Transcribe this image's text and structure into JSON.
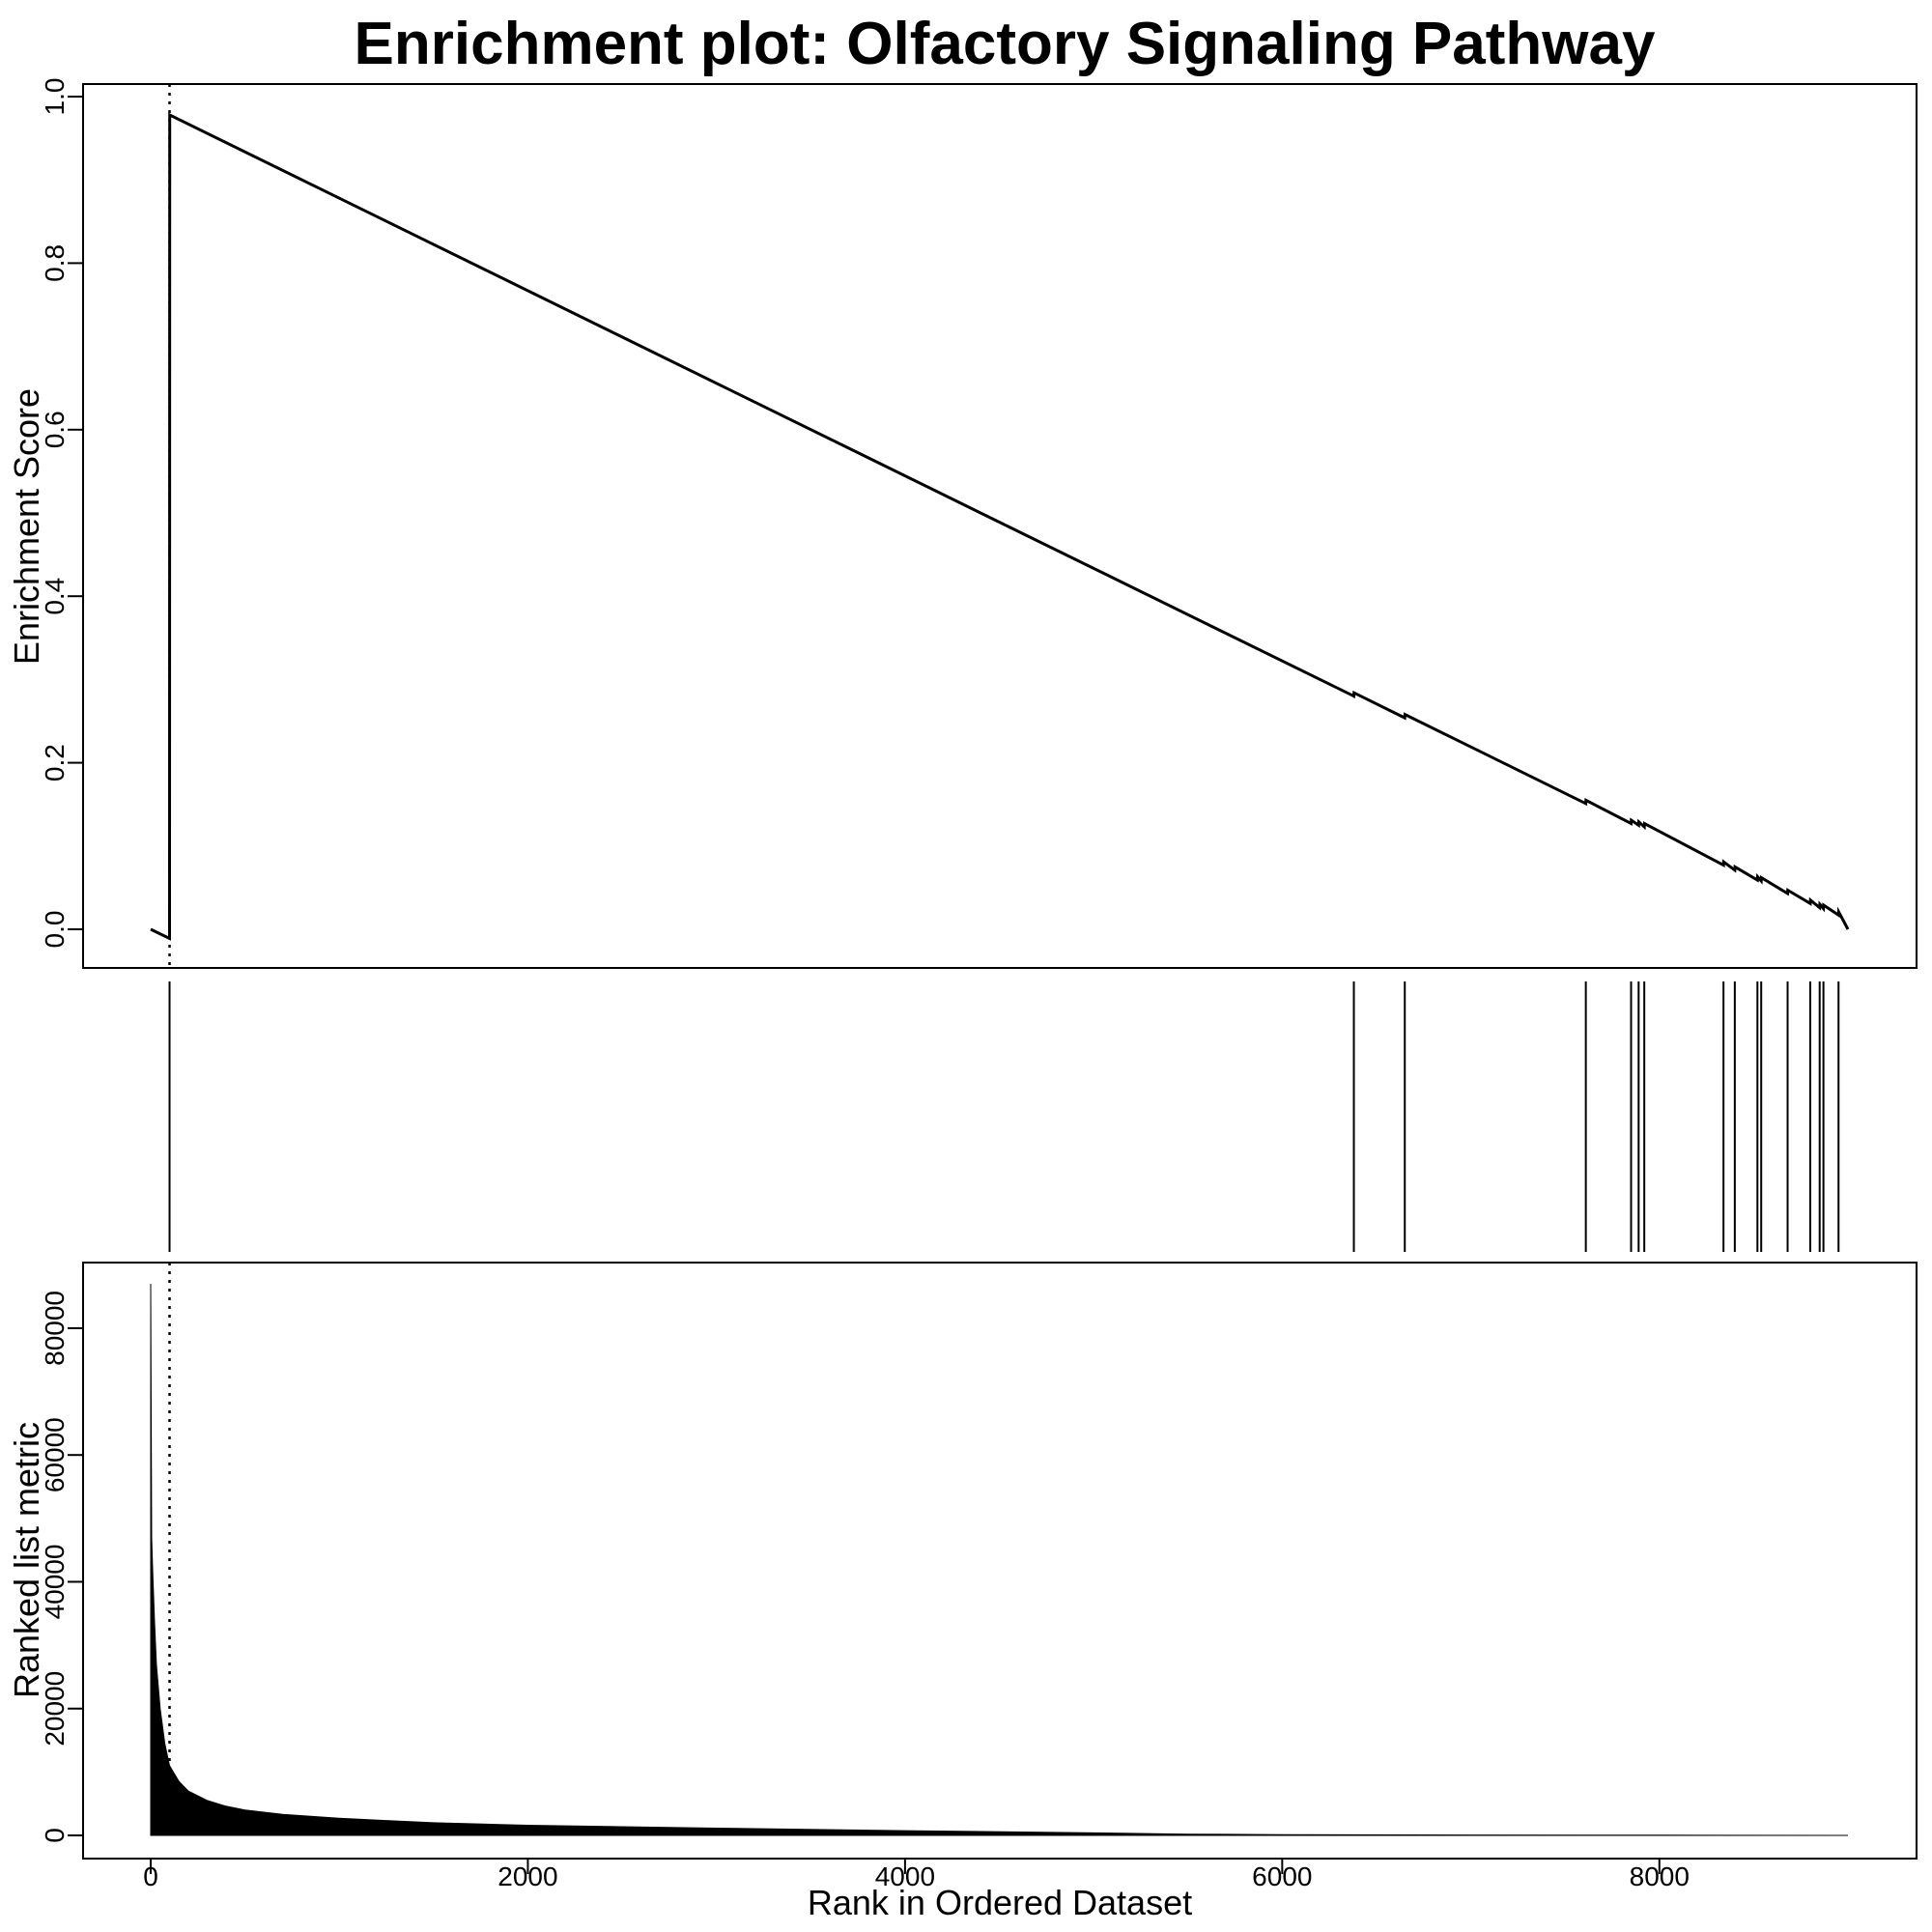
{
  "chart_data": [
    {
      "type": "line",
      "panel": "enrichment-score",
      "title": "Enrichment plot: Olfactory Signaling Pathway",
      "ylabel": "Enrichment Score",
      "xlabel": "",
      "xlim": [
        0,
        9000
      ],
      "ylim": [
        0,
        1.0
      ],
      "y_ticks": [
        "0.0",
        "0.2",
        "0.4",
        "0.6",
        "0.8",
        "1.0"
      ],
      "grid": false,
      "series": [
        {
          "x": [
            0,
            100,
            101,
            6380,
            6381,
            6650,
            6651,
            7610,
            7611,
            7850,
            7851,
            7890,
            7891,
            7920,
            7921,
            8340,
            8341,
            8400,
            8401,
            8520,
            8521,
            8540,
            8541,
            8680,
            8681,
            8800,
            8801,
            8850,
            8851,
            8870,
            8871,
            8950,
            8951,
            9000
          ],
          "y": [
            0,
            -0.011,
            0.978,
            0.28,
            0.284,
            0.254,
            0.258,
            0.151,
            0.155,
            0.127,
            0.131,
            0.125,
            0.129,
            0.123,
            0.127,
            0.077,
            0.081,
            0.071,
            0.075,
            0.059,
            0.063,
            0.058,
            0.062,
            0.043,
            0.047,
            0.031,
            0.035,
            0.026,
            0.03,
            0.025,
            0.029,
            0.017,
            0.021,
            0.0
          ]
        }
      ],
      "reference_line_x": 100
    },
    {
      "type": "bar",
      "panel": "hit-barcode",
      "hit_ranks": [
        100,
        6380,
        6650,
        7610,
        7850,
        7890,
        7920,
        8340,
        8400,
        8520,
        8540,
        8680,
        8800,
        8850,
        8870,
        8950
      ]
    },
    {
      "type": "area",
      "panel": "ranked-list-metric",
      "ylabel": "Ranked list metric",
      "xlabel": "Rank in Ordered Dataset",
      "xlim": [
        0,
        9000
      ],
      "ylim": [
        0,
        87000
      ],
      "x_ticks": [
        "0",
        "2000",
        "4000",
        "6000",
        "8000"
      ],
      "y_ticks": [
        "0",
        "20000",
        "40000",
        "60000",
        "80000"
      ],
      "series": [
        {
          "x": [
            0,
            5,
            10,
            20,
            30,
            50,
            75,
            100,
            150,
            200,
            300,
            400,
            500,
            700,
            1000,
            1500,
            2000,
            3000,
            4000,
            5000,
            5500,
            6000,
            7000,
            8000,
            9000
          ],
          "y": [
            87000,
            47000,
            42000,
            34000,
            27000,
            20000,
            14500,
            11000,
            8500,
            7000,
            5500,
            4600,
            4000,
            3300,
            2700,
            2000,
            1600,
            1150,
            750,
            400,
            200,
            120,
            60,
            30,
            0
          ]
        }
      ],
      "reference_line_x": 100
    }
  ]
}
